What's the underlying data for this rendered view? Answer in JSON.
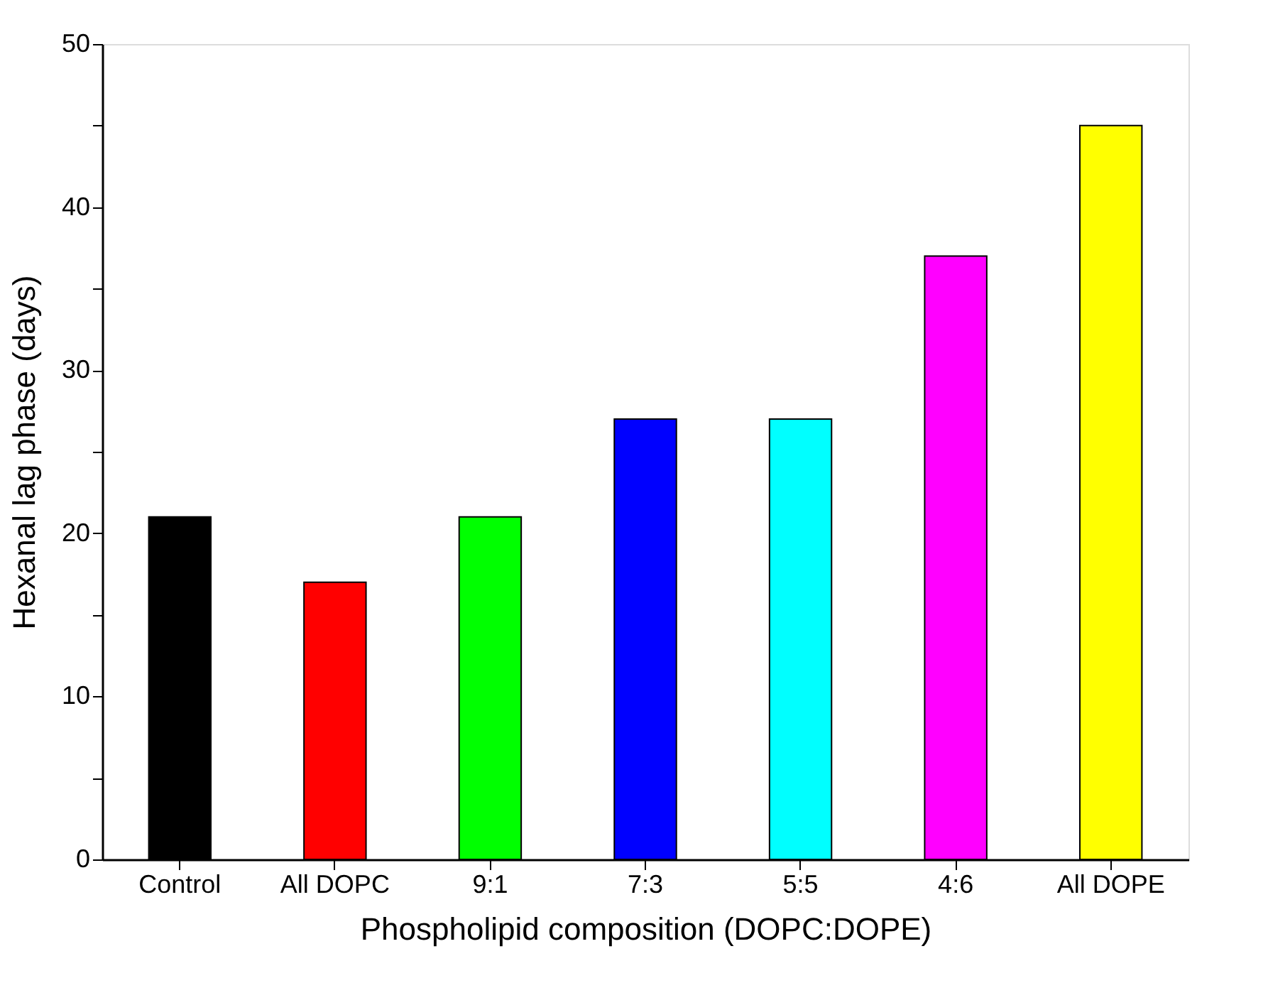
{
  "chart_data": {
    "type": "bar",
    "xlabel": "Phospholipid composition (DOPC:DOPE)",
    "ylabel": "Hexanal lag phase (days)",
    "categories": [
      "Control",
      "All DOPC",
      "9:1",
      "7:3",
      "5:5",
      "4:6",
      "All DOPE"
    ],
    "values": [
      21,
      17,
      21,
      27,
      27,
      37,
      45
    ],
    "colors": [
      "#000000",
      "#ff0000",
      "#00ff00",
      "#0000ff",
      "#00ffff",
      "#ff00ff",
      "#ffff00"
    ],
    "ylim": [
      0,
      50
    ],
    "yticks": [
      0,
      {
        "value": 5,
        "label": null
      },
      10,
      {
        "value": 15,
        "label": null
      },
      20,
      {
        "value": 25,
        "label": null
      },
      30,
      {
        "value": 35,
        "label": null
      },
      40,
      {
        "value": 45,
        "label": null
      },
      50
    ],
    "grid": false,
    "legend": false
  }
}
